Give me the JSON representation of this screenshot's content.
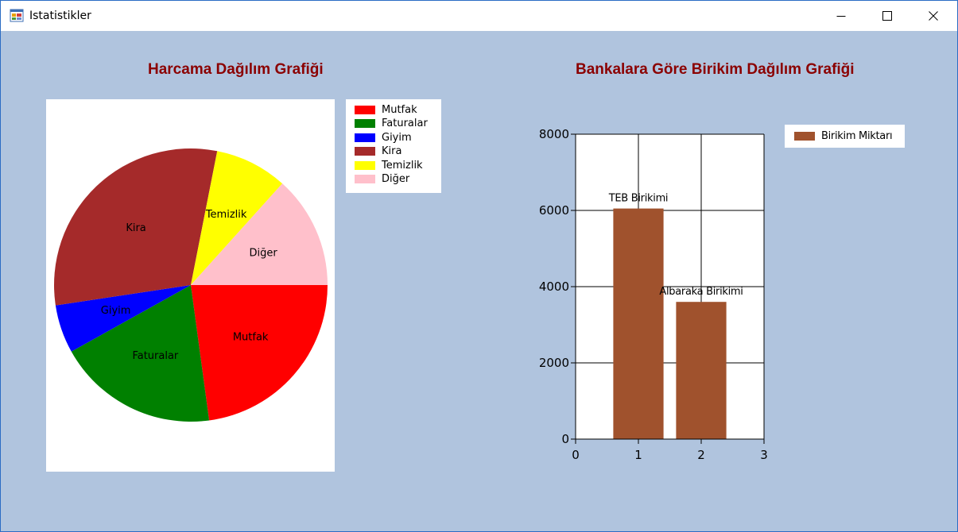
{
  "window": {
    "title": "Istatistikler",
    "icon": "app-window-icon",
    "controls": [
      "minimize-icon",
      "maximize-icon",
      "close-icon"
    ]
  },
  "pie_chart": {
    "title": "Harcama Dağılım Grafiği"
  },
  "bar_chart": {
    "title": "Bankalara Göre Birikim Dağılım Grafiği"
  },
  "colors": {
    "window_bg": "#b0c4de",
    "title_color": "#8b0000",
    "bar_color": "#a0522d"
  },
  "chart_data": [
    {
      "type": "pie",
      "title": "Harcama Dağılım Grafiği",
      "categories": [
        "Mutfak",
        "Faturalar",
        "Giyim",
        "Kira",
        "Temizlik",
        "Diğer"
      ],
      "values": [
        24,
        20,
        6,
        32,
        9,
        14
      ],
      "colors": [
        "#ff0000",
        "#008000",
        "#0000ff",
        "#a52a2a",
        "#ffff00",
        "#ffc0cb"
      ],
      "legend": "top-right",
      "legend_entries": [
        "Mutfak",
        "Faturalar",
        "Giyim",
        "Kira",
        "Temizlik",
        "Diğer"
      ]
    },
    {
      "type": "bar",
      "title": "Bankalara Göre Birikim Dağılım Grafiği",
      "series": [
        {
          "name": "Birikim Miktarı",
          "points": [
            {
              "x": 1,
              "y": 6050,
              "label": "TEB Birikimi"
            },
            {
              "x": 2,
              "y": 3600,
              "label": "Albaraka Birikimi"
            }
          ]
        }
      ],
      "xlim": [
        0,
        3
      ],
      "ylim": [
        0,
        8000
      ],
      "xticks": [
        0,
        1,
        2,
        3
      ],
      "yticks": [
        0,
        2000,
        4000,
        6000,
        8000
      ],
      "grid": true,
      "legend": "top-right"
    }
  ]
}
